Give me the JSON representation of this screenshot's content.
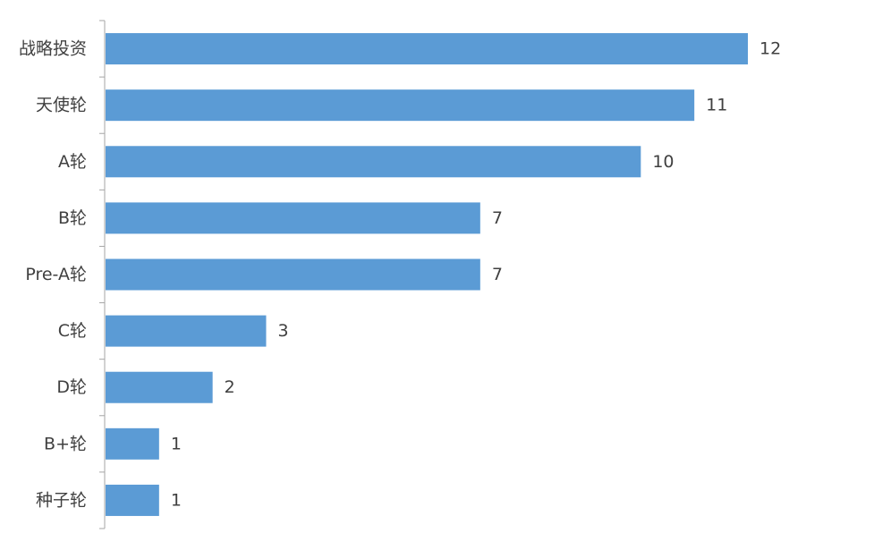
{
  "chart_data": {
    "type": "bar",
    "orientation": "horizontal",
    "categories": [
      "战略投资",
      "天使轮",
      "A轮",
      "B轮",
      "Pre-A轮",
      "C轮",
      "D轮",
      "B+轮",
      "种子轮"
    ],
    "values": [
      12,
      11,
      10,
      7,
      7,
      3,
      2,
      1,
      1
    ],
    "data_labels": [
      "12",
      "11",
      "10",
      "7",
      "7",
      "3",
      "2",
      "1",
      "1"
    ],
    "bar_color": "#5B9BD5",
    "xlim": [
      0,
      12
    ],
    "grid": false,
    "legend": "none"
  }
}
